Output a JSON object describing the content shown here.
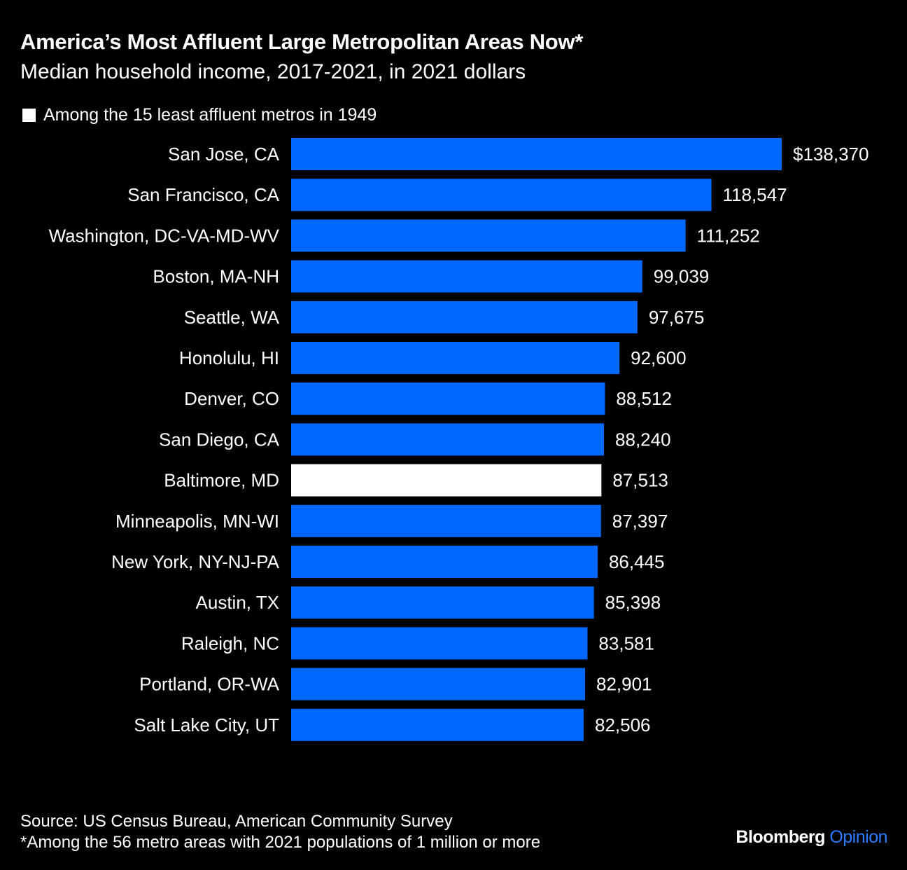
{
  "chart_data": {
    "type": "bar",
    "orientation": "horizontal",
    "title": "America’s Most Affluent Large Metropolitan Areas Now*",
    "subtitle": "Median household income, 2017-2021, in 2021 dollars",
    "legend": "Among the 15 least affluent metros in 1949",
    "categories": [
      "San Jose, CA",
      "San Francisco, CA",
      "Washington, DC-VA-MD-WV",
      "Boston, MA-NH",
      "Seattle, WA",
      "Honolulu, HI",
      "Denver, CO",
      "San Diego, CA",
      "Baltimore, MD",
      "Minneapolis, MN-WI",
      "New York, NY-NJ-PA",
      "Austin, TX",
      "Raleigh, NC",
      "Portland, OR-WA",
      "Salt Lake City, UT"
    ],
    "values": [
      138370,
      118547,
      111252,
      99039,
      97675,
      92600,
      88512,
      88240,
      87513,
      87397,
      86445,
      85398,
      83581,
      82901,
      82506
    ],
    "value_labels": [
      "$138,370",
      "118,547",
      "111,252",
      "99,039",
      "97,675",
      "92,600",
      "88,512",
      "88,240",
      "87,513",
      "87,397",
      "86,445",
      "85,398",
      "83,581",
      "82,901",
      "82,506"
    ],
    "highlighted": [
      "Baltimore, MD"
    ],
    "xlim": [
      0,
      138370
    ],
    "colors": {
      "default": "#0068ff",
      "highlight": "#ffffff",
      "background": "#000000"
    },
    "grid": false
  },
  "footer": {
    "source": "Source: US Census Bureau, American Community Survey",
    "note": "*Among the 56 metro areas with 2021 populations of 1 million or more"
  },
  "brand": {
    "name": "Bloomberg",
    "section": "Opinion",
    "section_color": "#2b7bff"
  }
}
